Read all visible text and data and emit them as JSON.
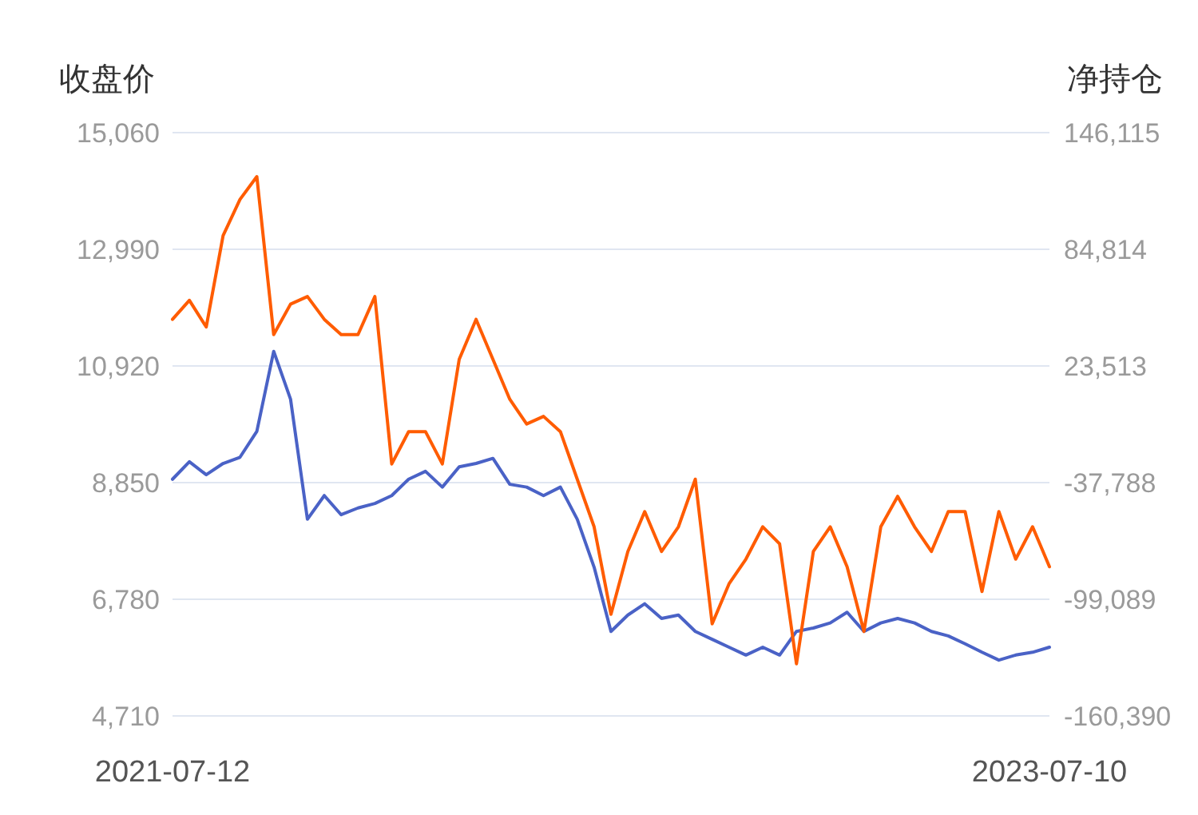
{
  "chart_data": {
    "type": "line",
    "ylabel": "收盘价",
    "y2label": "净持仓",
    "grid": "y",
    "x": [
      "2021-07-12",
      "2021-07-26",
      "2021-08-09",
      "2021-08-23",
      "2021-09-06",
      "2021-09-20",
      "2021-10-04",
      "2021-10-18",
      "2021-11-01",
      "2021-11-15",
      "2021-11-29",
      "2021-12-13",
      "2021-12-27",
      "2022-01-10",
      "2022-01-24",
      "2022-02-07",
      "2022-02-21",
      "2022-03-07",
      "2022-03-21",
      "2022-04-04",
      "2022-04-18",
      "2022-05-02",
      "2022-05-16",
      "2022-05-30",
      "2022-06-13",
      "2022-06-27",
      "2022-07-11",
      "2022-07-25",
      "2022-08-08",
      "2022-08-22",
      "2022-09-05",
      "2022-09-19",
      "2022-10-03",
      "2022-10-17",
      "2022-10-31",
      "2022-11-14",
      "2022-11-28",
      "2022-12-12",
      "2022-12-26",
      "2023-01-09",
      "2023-01-23",
      "2023-02-06",
      "2023-02-20",
      "2023-03-06",
      "2023-03-20",
      "2023-04-03",
      "2023-04-17",
      "2023-05-01",
      "2023-05-15",
      "2023-05-29",
      "2023-06-12",
      "2023-06-26",
      "2023-07-10"
    ],
    "xlim": [
      "2021-07-12",
      "2023-07-10"
    ],
    "xticks": [
      {
        "value": "2021-07-12",
        "label": "2021-07-12"
      },
      {
        "value": "2023-07-10",
        "label": "2023-07-10"
      }
    ],
    "ylim": [
      4710,
      15060
    ],
    "yticks": [
      {
        "value": 4710,
        "label": "4,710"
      },
      {
        "value": 6780,
        "label": "6,780"
      },
      {
        "value": 8850,
        "label": "8,850"
      },
      {
        "value": 10920,
        "label": "10,920"
      },
      {
        "value": 12990,
        "label": "12,990"
      },
      {
        "value": 15060,
        "label": "15,060"
      }
    ],
    "y2lim": [
      -160390,
      146115
    ],
    "y2ticks": [
      {
        "value": -160390,
        "label": "-160,390"
      },
      {
        "value": -99089,
        "label": "-99,089"
      },
      {
        "value": -37788,
        "label": "-37,788"
      },
      {
        "value": 23513,
        "label": "23,513"
      },
      {
        "value": 84814,
        "label": "84,814"
      },
      {
        "value": 146115,
        "label": "146,115"
      }
    ],
    "series": [
      {
        "axis": "y",
        "color": "#4a62c6",
        "values": [
          8910,
          9220,
          8990,
          9190,
          9300,
          9760,
          11180,
          10330,
          8200,
          8620,
          8280,
          8400,
          8480,
          8620,
          8910,
          9050,
          8770,
          9130,
          9190,
          9280,
          8820,
          8770,
          8620,
          8770,
          8200,
          7350,
          6210,
          6500,
          6700,
          6440,
          6500,
          6210,
          6070,
          5930,
          5790,
          5930,
          5790,
          6210,
          6270,
          6360,
          6550,
          6210,
          6360,
          6440,
          6360,
          6210,
          6130,
          5990,
          5840,
          5700,
          5790,
          5840,
          5930
        ]
      },
      {
        "axis": "y2",
        "color": "#ff5c00",
        "values": [
          48000,
          58000,
          44000,
          92000,
          111000,
          123000,
          40000,
          56000,
          60000,
          48000,
          40000,
          40000,
          60000,
          -28000,
          -11000,
          -11000,
          -28000,
          27000,
          48000,
          27000,
          6000,
          -7000,
          -3000,
          -11000,
          -36000,
          -61000,
          -107000,
          -74000,
          -53000,
          -74000,
          -61000,
          -36000,
          -112000,
          -91000,
          -78000,
          -61000,
          -70000,
          -133000,
          -74000,
          -61000,
          -82000,
          -116000,
          -61000,
          -45000,
          -61000,
          -74000,
          -53000,
          -53000,
          -95000,
          -53000,
          -78000,
          -61000,
          -82000
        ]
      }
    ]
  }
}
